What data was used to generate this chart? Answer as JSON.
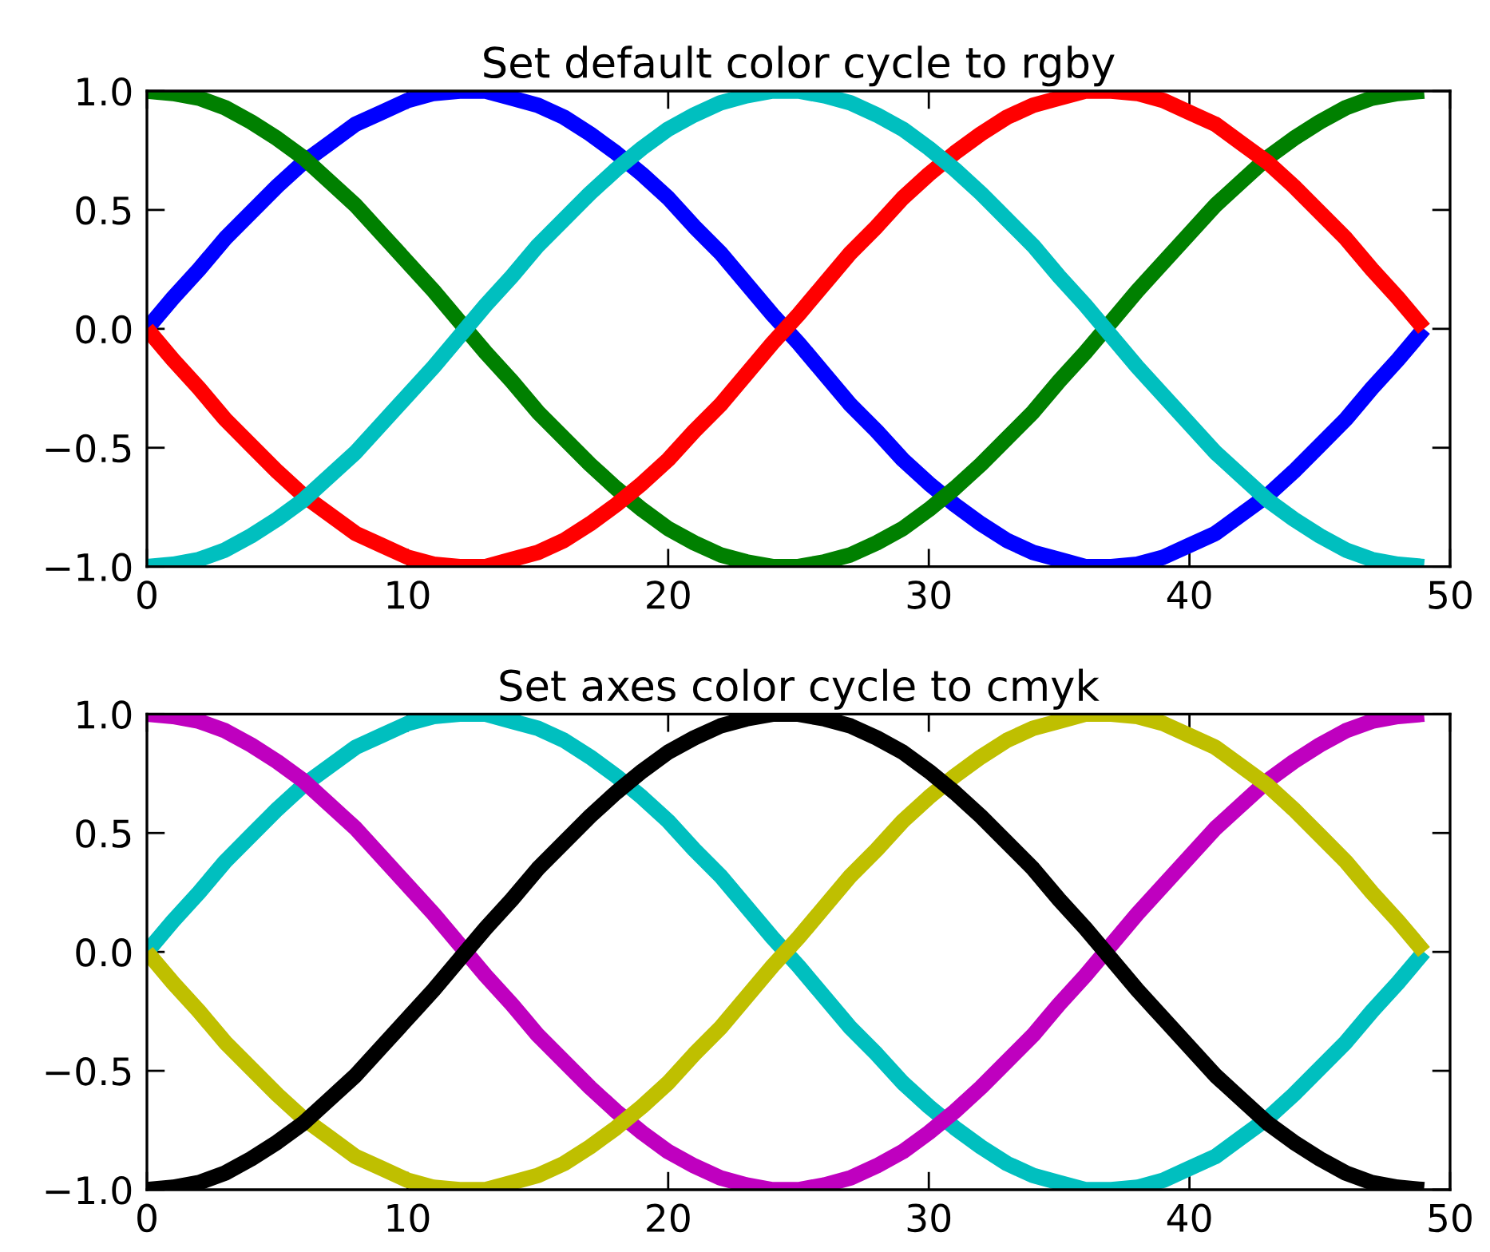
{
  "chart_data": [
    {
      "type": "line",
      "title": "Set default color cycle to rgby",
      "x": [
        0,
        1,
        2,
        3,
        4,
        5,
        6,
        7,
        8,
        9,
        10,
        11,
        12,
        13,
        14,
        15,
        16,
        17,
        18,
        19,
        20,
        21,
        22,
        23,
        24,
        25,
        26,
        27,
        28,
        29,
        30,
        31,
        32,
        33,
        34,
        35,
        36,
        37,
        38,
        39,
        40,
        41,
        42,
        43,
        44,
        45,
        46,
        47,
        48,
        49
      ],
      "series": [
        {
          "color": "#0000ff",
          "values": [
            0,
            0.13,
            0.25,
            0.38,
            0.49,
            0.6,
            0.7,
            0.78,
            0.86,
            0.91,
            0.96,
            0.99,
            1.0,
            1.0,
            0.97,
            0.94,
            0.89,
            0.82,
            0.74,
            0.65,
            0.55,
            0.43,
            0.32,
            0.19,
            0.06,
            -0.06,
            -0.19,
            -0.32,
            -0.43,
            -0.55,
            -0.65,
            -0.74,
            -0.82,
            -0.89,
            -0.94,
            -0.97,
            -1.0,
            -1.0,
            -0.99,
            -0.96,
            -0.91,
            -0.86,
            -0.78,
            -0.7,
            -0.6,
            -0.49,
            -0.38,
            -0.25,
            -0.13,
            0
          ]
        },
        {
          "color": "#008000",
          "values": [
            1,
            0.99,
            0.97,
            0.93,
            0.87,
            0.8,
            0.72,
            0.62,
            0.52,
            0.4,
            0.28,
            0.16,
            0.03,
            -0.1,
            -0.22,
            -0.35,
            -0.46,
            -0.57,
            -0.67,
            -0.76,
            -0.84,
            -0.9,
            -0.95,
            -0.98,
            -1.0,
            -1.0,
            -0.98,
            -0.95,
            -0.9,
            -0.84,
            -0.76,
            -0.67,
            -0.57,
            -0.46,
            -0.35,
            -0.22,
            -0.1,
            0.03,
            0.16,
            0.28,
            0.4,
            0.52,
            0.62,
            0.72,
            0.8,
            0.87,
            0.93,
            0.97,
            0.99,
            1
          ]
        },
        {
          "color": "#ff0000",
          "values": [
            0,
            -0.13,
            -0.25,
            -0.38,
            -0.49,
            -0.6,
            -0.7,
            -0.78,
            -0.86,
            -0.91,
            -0.96,
            -0.99,
            -1.0,
            -1.0,
            -0.97,
            -0.94,
            -0.89,
            -0.82,
            -0.74,
            -0.65,
            -0.55,
            -0.43,
            -0.32,
            -0.19,
            -0.06,
            0.06,
            0.19,
            0.32,
            0.43,
            0.55,
            0.65,
            0.74,
            0.82,
            0.89,
            0.94,
            0.97,
            1.0,
            1.0,
            0.99,
            0.96,
            0.91,
            0.86,
            0.78,
            0.7,
            0.6,
            0.49,
            0.38,
            0.25,
            0.13,
            0
          ]
        },
        {
          "color": "#00bfbf",
          "values": [
            -1,
            -0.99,
            -0.97,
            -0.93,
            -0.87,
            -0.8,
            -0.72,
            -0.62,
            -0.52,
            -0.4,
            -0.28,
            -0.16,
            -0.03,
            0.1,
            0.22,
            0.35,
            0.46,
            0.57,
            0.67,
            0.76,
            0.84,
            0.9,
            0.95,
            0.98,
            1.0,
            1.0,
            0.98,
            0.95,
            0.9,
            0.84,
            0.76,
            0.67,
            0.57,
            0.46,
            0.35,
            0.22,
            0.1,
            -0.03,
            -0.16,
            -0.28,
            -0.4,
            -0.52,
            -0.62,
            -0.72,
            -0.8,
            -0.87,
            -0.93,
            -0.97,
            -0.99,
            -1
          ]
        }
      ],
      "xlim": [
        0,
        50
      ],
      "xticks": [
        0,
        10,
        20,
        30,
        40,
        50
      ],
      "ylim": [
        -1,
        1
      ],
      "yticks": [
        {
          "value": -1,
          "label": "−1.0"
        },
        {
          "value": -0.5,
          "label": "−0.5"
        },
        {
          "value": 0,
          "label": "0.0"
        },
        {
          "value": 0.5,
          "label": "0.5"
        },
        {
          "value": 1,
          "label": "1.0"
        }
      ]
    },
    {
      "type": "line",
      "title": "Set axes color cycle to cmyk",
      "x": [
        0,
        1,
        2,
        3,
        4,
        5,
        6,
        7,
        8,
        9,
        10,
        11,
        12,
        13,
        14,
        15,
        16,
        17,
        18,
        19,
        20,
        21,
        22,
        23,
        24,
        25,
        26,
        27,
        28,
        29,
        30,
        31,
        32,
        33,
        34,
        35,
        36,
        37,
        38,
        39,
        40,
        41,
        42,
        43,
        44,
        45,
        46,
        47,
        48,
        49
      ],
      "series": [
        {
          "color": "#00bfbf",
          "values": [
            0,
            0.13,
            0.25,
            0.38,
            0.49,
            0.6,
            0.7,
            0.78,
            0.86,
            0.91,
            0.96,
            0.99,
            1.0,
            1.0,
            0.97,
            0.94,
            0.89,
            0.82,
            0.74,
            0.65,
            0.55,
            0.43,
            0.32,
            0.19,
            0.06,
            -0.06,
            -0.19,
            -0.32,
            -0.43,
            -0.55,
            -0.65,
            -0.74,
            -0.82,
            -0.89,
            -0.94,
            -0.97,
            -1.0,
            -1.0,
            -0.99,
            -0.96,
            -0.91,
            -0.86,
            -0.78,
            -0.7,
            -0.6,
            -0.49,
            -0.38,
            -0.25,
            -0.13,
            0
          ]
        },
        {
          "color": "#bf00bf",
          "values": [
            1,
            0.99,
            0.97,
            0.93,
            0.87,
            0.8,
            0.72,
            0.62,
            0.52,
            0.4,
            0.28,
            0.16,
            0.03,
            -0.1,
            -0.22,
            -0.35,
            -0.46,
            -0.57,
            -0.67,
            -0.76,
            -0.84,
            -0.9,
            -0.95,
            -0.98,
            -1.0,
            -1.0,
            -0.98,
            -0.95,
            -0.9,
            -0.84,
            -0.76,
            -0.67,
            -0.57,
            -0.46,
            -0.35,
            -0.22,
            -0.1,
            0.03,
            0.16,
            0.28,
            0.4,
            0.52,
            0.62,
            0.72,
            0.8,
            0.87,
            0.93,
            0.97,
            0.99,
            1
          ]
        },
        {
          "color": "#bfbf00",
          "values": [
            0,
            -0.13,
            -0.25,
            -0.38,
            -0.49,
            -0.6,
            -0.7,
            -0.78,
            -0.86,
            -0.91,
            -0.96,
            -0.99,
            -1.0,
            -1.0,
            -0.97,
            -0.94,
            -0.89,
            -0.82,
            -0.74,
            -0.65,
            -0.55,
            -0.43,
            -0.32,
            -0.19,
            -0.06,
            0.06,
            0.19,
            0.32,
            0.43,
            0.55,
            0.65,
            0.74,
            0.82,
            0.89,
            0.94,
            0.97,
            1.0,
            1.0,
            0.99,
            0.96,
            0.91,
            0.86,
            0.78,
            0.7,
            0.6,
            0.49,
            0.38,
            0.25,
            0.13,
            0
          ]
        },
        {
          "color": "#000000",
          "values": [
            -1,
            -0.99,
            -0.97,
            -0.93,
            -0.87,
            -0.8,
            -0.72,
            -0.62,
            -0.52,
            -0.4,
            -0.28,
            -0.16,
            -0.03,
            0.1,
            0.22,
            0.35,
            0.46,
            0.57,
            0.67,
            0.76,
            0.84,
            0.9,
            0.95,
            0.98,
            1.0,
            1.0,
            0.98,
            0.95,
            0.9,
            0.84,
            0.76,
            0.67,
            0.57,
            0.46,
            0.35,
            0.22,
            0.1,
            -0.03,
            -0.16,
            -0.28,
            -0.4,
            -0.52,
            -0.62,
            -0.72,
            -0.8,
            -0.87,
            -0.93,
            -0.97,
            -0.99,
            -1
          ]
        }
      ],
      "xlim": [
        0,
        50
      ],
      "xticks": [
        0,
        10,
        20,
        30,
        40,
        50
      ],
      "ylim": [
        -1,
        1
      ],
      "yticks": [
        {
          "value": -1,
          "label": "−1.0"
        },
        {
          "value": -0.5,
          "label": "−0.5"
        },
        {
          "value": 0,
          "label": "0.0"
        },
        {
          "value": 0.5,
          "label": "0.5"
        },
        {
          "value": 1,
          "label": "1.0"
        }
      ]
    }
  ]
}
